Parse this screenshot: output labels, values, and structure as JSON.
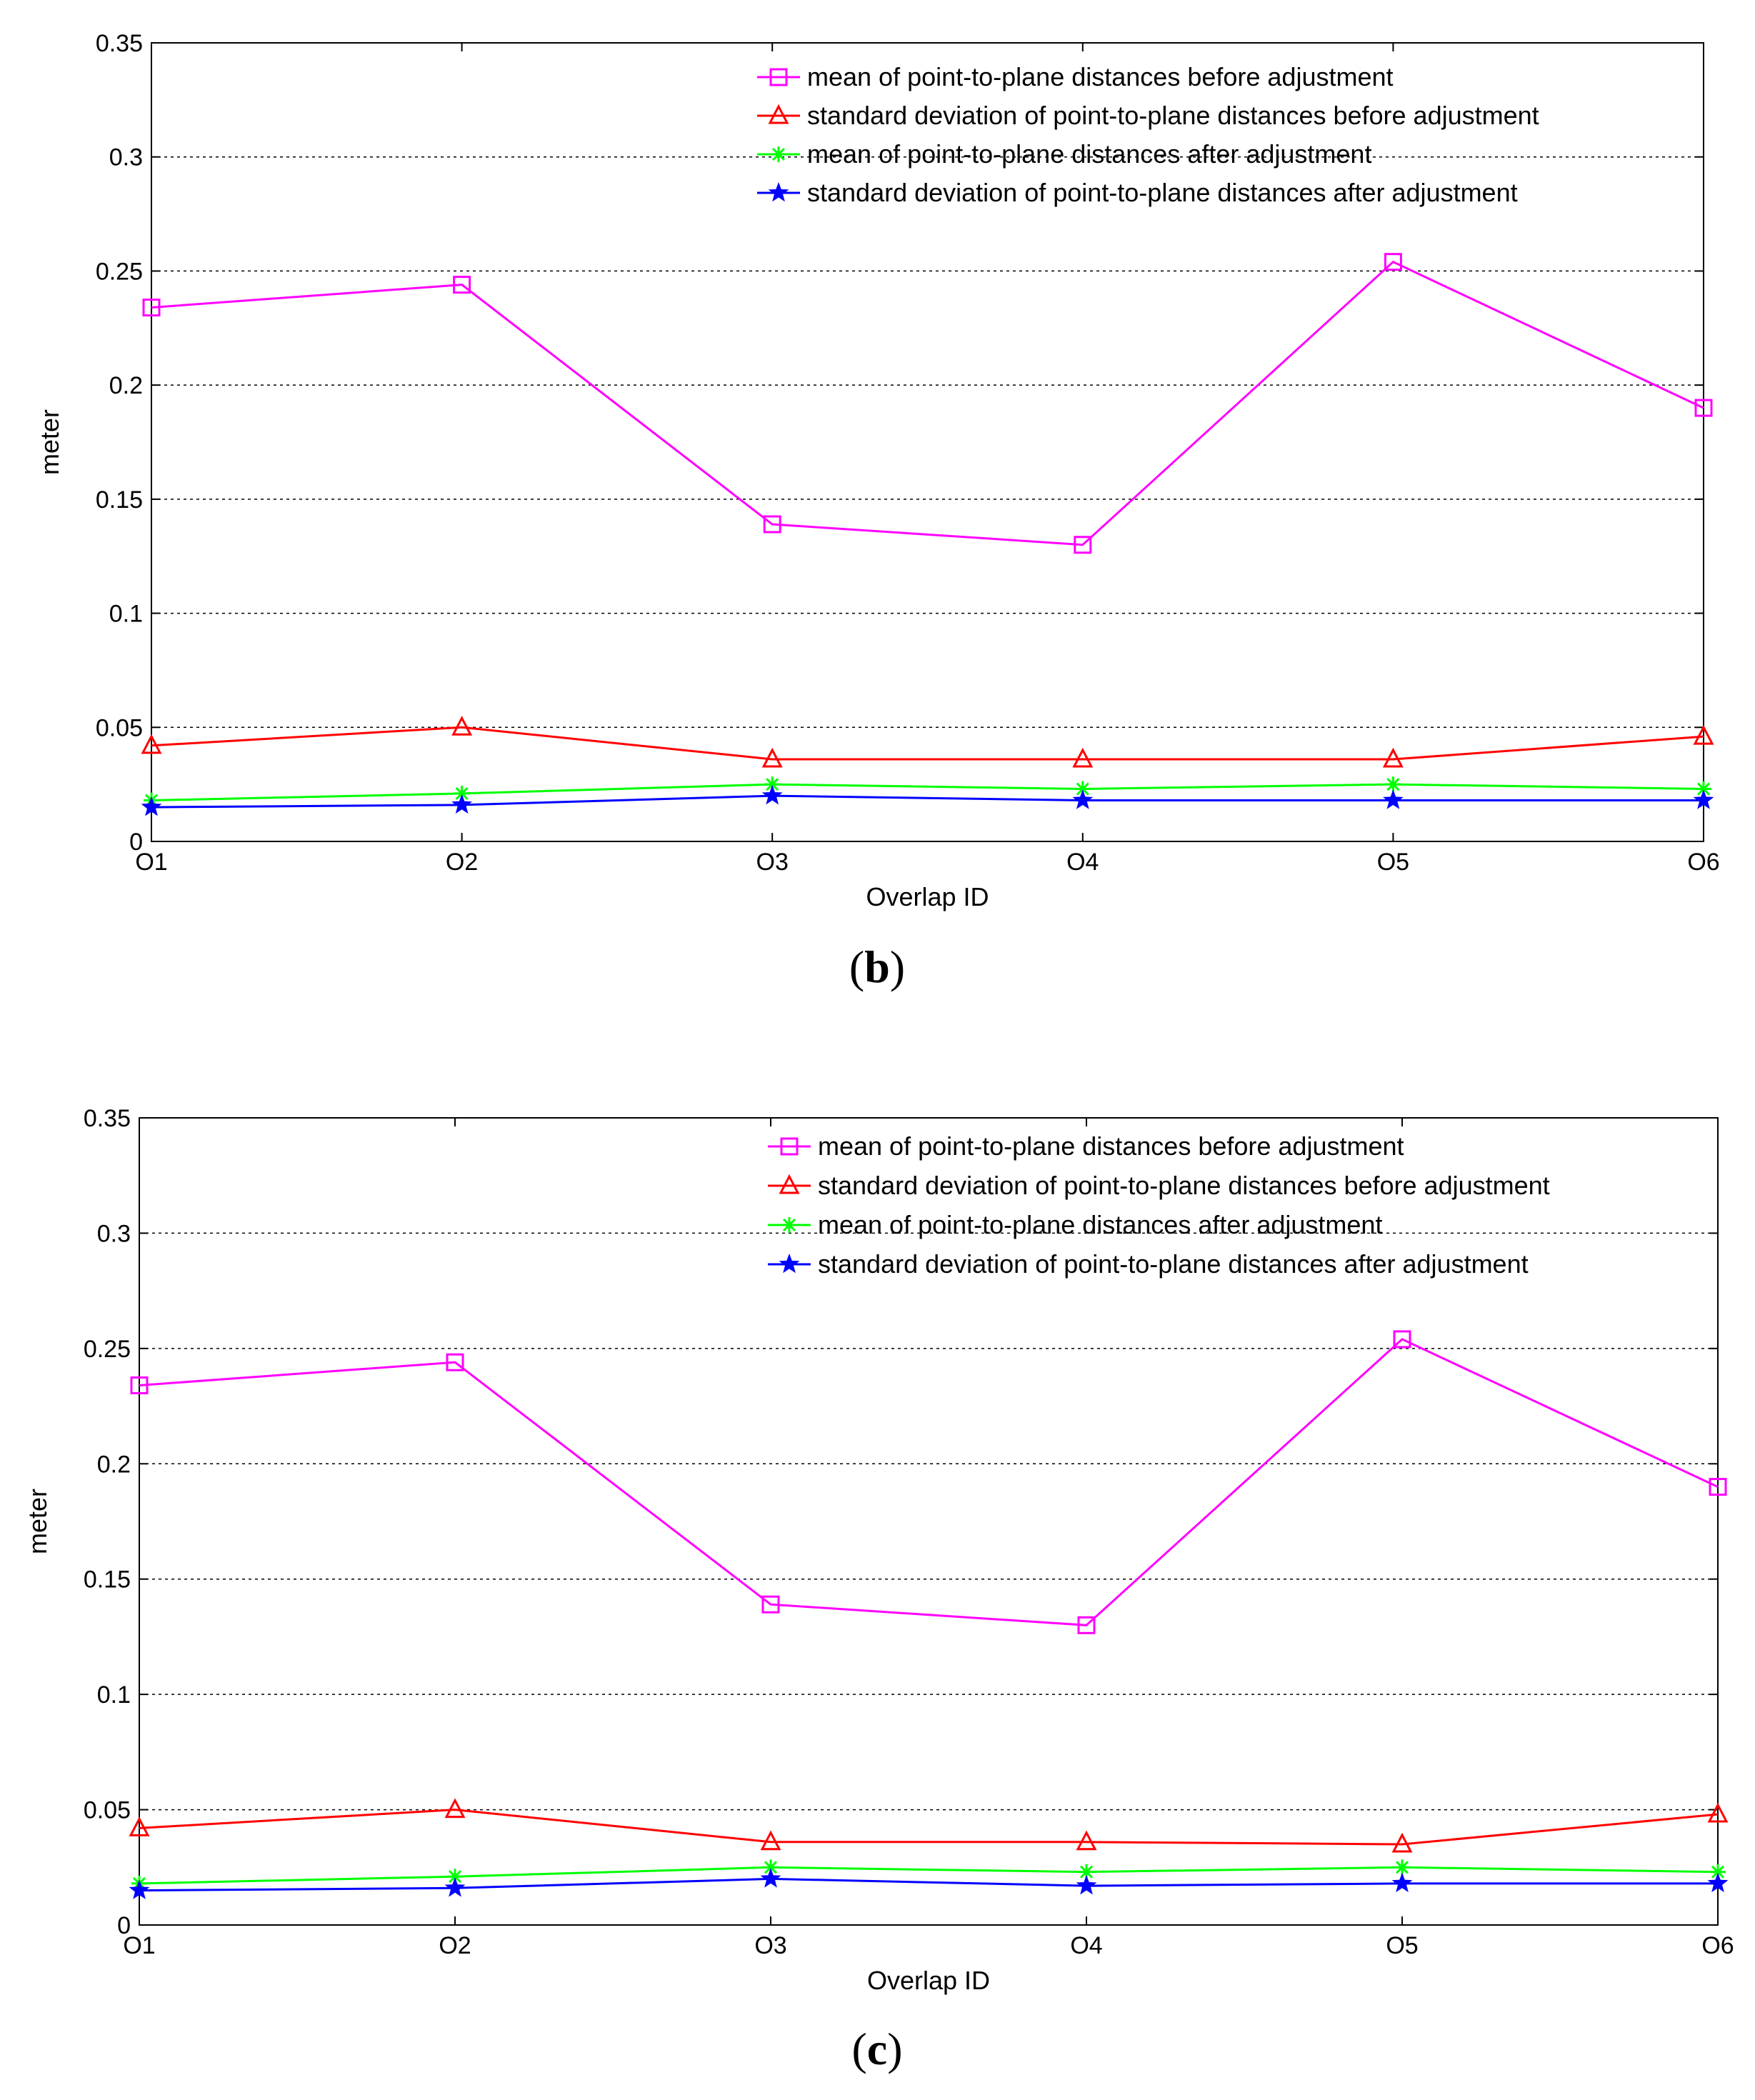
{
  "chart_data": [
    {
      "type": "line",
      "caption": "b",
      "title": "",
      "xlabel": "Overlap ID",
      "ylabel": "meter",
      "categories": [
        "O1",
        "O2",
        "O3",
        "O4",
        "O5",
        "O6"
      ],
      "ylim": [
        0,
        0.35
      ],
      "yticks": [
        0,
        0.05,
        0.1,
        0.15,
        0.2,
        0.25,
        0.3,
        0.35
      ],
      "ytick_labels": [
        "0",
        "0.05",
        "0.1",
        "0.15",
        "0.2",
        "0.25",
        "0.3",
        "0.35"
      ],
      "grid": "horizontal dotted",
      "legend_position": "top-right",
      "series": [
        {
          "name": "mean of point-to-plane distances before adjustment",
          "color": "#ff00ff",
          "marker": "square",
          "values": [
            0.234,
            0.244,
            0.139,
            0.13,
            0.254,
            0.19
          ]
        },
        {
          "name": "standard deviation of point-to-plane distances before adjustment",
          "color": "#ff0000",
          "marker": "triangle",
          "values": [
            0.042,
            0.05,
            0.036,
            0.036,
            0.036,
            0.046
          ]
        },
        {
          "name": "mean of point-to-plane distances after adjustment",
          "color": "#00ff00",
          "marker": "asterisk",
          "values": [
            0.018,
            0.021,
            0.025,
            0.023,
            0.025,
            0.023
          ]
        },
        {
          "name": "standard deviation of point-to-plane distances after adjustment",
          "color": "#0000ff",
          "marker": "star",
          "values": [
            0.015,
            0.016,
            0.02,
            0.018,
            0.018,
            0.018
          ]
        }
      ]
    },
    {
      "type": "line",
      "caption": "c",
      "title": "",
      "xlabel": "Overlap ID",
      "ylabel": "meter",
      "categories": [
        "O1",
        "O2",
        "O3",
        "O4",
        "O5",
        "O6"
      ],
      "ylim": [
        0,
        0.35
      ],
      "yticks": [
        0,
        0.05,
        0.1,
        0.15,
        0.2,
        0.25,
        0.3,
        0.35
      ],
      "ytick_labels": [
        "0",
        "0.05",
        "0.1",
        "0.15",
        "0.2",
        "0.25",
        "0.3",
        "0.35"
      ],
      "grid": "horizontal dotted",
      "legend_position": "top-right",
      "series": [
        {
          "name": "mean of point-to-plane distances before adjustment",
          "color": "#ff00ff",
          "marker": "square",
          "values": [
            0.234,
            0.244,
            0.139,
            0.13,
            0.254,
            0.19
          ]
        },
        {
          "name": "standard deviation of point-to-plane distances before adjustment",
          "color": "#ff0000",
          "marker": "triangle",
          "values": [
            0.042,
            0.05,
            0.036,
            0.036,
            0.035,
            0.048
          ]
        },
        {
          "name": "mean of point-to-plane distances after adjustment",
          "color": "#00ff00",
          "marker": "asterisk",
          "values": [
            0.018,
            0.021,
            0.025,
            0.023,
            0.025,
            0.023
          ]
        },
        {
          "name": "standard deviation of point-to-plane distances after adjustment",
          "color": "#0000ff",
          "marker": "star",
          "values": [
            0.015,
            0.016,
            0.02,
            0.017,
            0.018,
            0.018
          ]
        }
      ]
    }
  ]
}
